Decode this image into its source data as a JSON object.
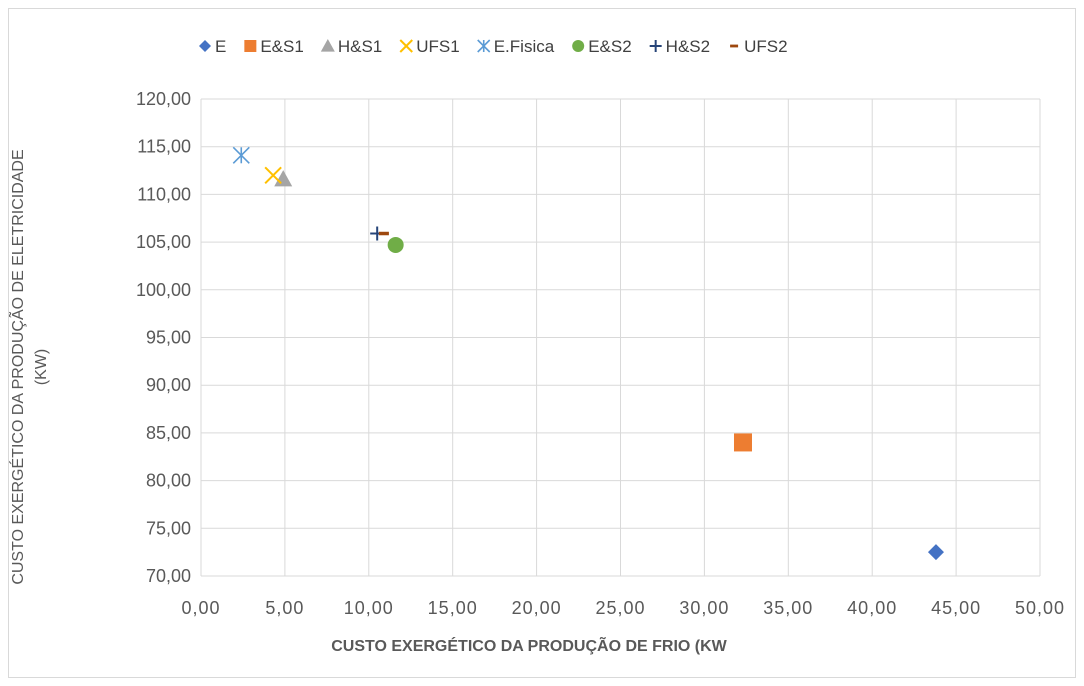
{
  "chart_data": {
    "type": "scatter",
    "title": "",
    "xlabel": "CUSTO EXERGÉTICO  DA PRODUÇÃO DE FRIO (KW",
    "ylabel_line1": "CUSTO EXERGÉTICO  DA PRODUÇÃO DE ELETRICIDADE",
    "ylabel_line2": "(KW)",
    "xlim": [
      0,
      50
    ],
    "ylim": [
      70,
      120
    ],
    "x_ticks": [
      "0,00",
      "5,00",
      "10,00",
      "15,00",
      "20,00",
      "25,00",
      "30,00",
      "35,00",
      "40,00",
      "45,00",
      "50,00"
    ],
    "y_ticks": [
      "70,00",
      "75,00",
      "80,00",
      "85,00",
      "90,00",
      "95,00",
      "100,00",
      "105,00",
      "110,00",
      "115,00",
      "120,00"
    ],
    "grid": true,
    "legend_position": "top",
    "series": [
      {
        "name": "E",
        "marker": "diamond",
        "color": "#4472C4",
        "points": [
          [
            43.8,
            72.5
          ]
        ]
      },
      {
        "name": "E&S1",
        "marker": "square",
        "color": "#ED7D31",
        "points": [
          [
            32.3,
            84.0
          ]
        ]
      },
      {
        "name": "H&S1",
        "marker": "triangle",
        "color": "#A5A5A5",
        "points": [
          [
            4.9,
            111.6
          ]
        ]
      },
      {
        "name": "UFS1",
        "marker": "x",
        "color": "#FFC000",
        "points": [
          [
            4.3,
            112.0
          ]
        ]
      },
      {
        "name": "E.Fisica",
        "marker": "asterisk",
        "color": "#5B9BD5",
        "points": [
          [
            2.4,
            114.1
          ]
        ]
      },
      {
        "name": "E&S2",
        "marker": "circle",
        "color": "#70AD47",
        "points": [
          [
            11.6,
            104.7
          ]
        ]
      },
      {
        "name": "H&S2",
        "marker": "plus",
        "color": "#264478",
        "points": [
          [
            10.5,
            105.9
          ]
        ]
      },
      {
        "name": "UFS2",
        "marker": "dash",
        "color": "#9E480E",
        "points": [
          [
            10.9,
            105.9
          ]
        ]
      }
    ]
  }
}
